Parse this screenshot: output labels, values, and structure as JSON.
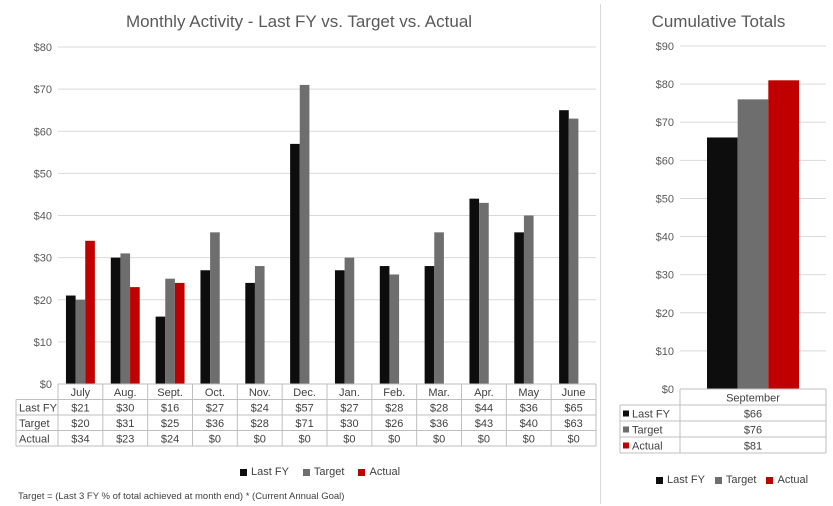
{
  "colors": {
    "last_fy": "#0d0d0d",
    "target": "#6e6e6e",
    "actual": "#c00000",
    "grid": "#d9d9d9",
    "axis": "#bfbfbf"
  },
  "chart_data": [
    {
      "type": "bar",
      "title": "Monthly Activity -  Last FY vs. Target vs. Actual",
      "categories": [
        "July",
        "Aug.",
        "Sept.",
        "Oct.",
        "Nov.",
        "Dec.",
        "Jan.",
        "Feb.",
        "Mar.",
        "Apr.",
        "May",
        "June"
      ],
      "series": [
        {
          "name": "Last FY",
          "values": [
            21,
            30,
            16,
            27,
            24,
            57,
            27,
            28,
            28,
            44,
            36,
            65
          ],
          "labels": [
            "$21",
            "$30",
            "$16",
            "$27",
            "$24",
            "$57",
            "$27",
            "$28",
            "$28",
            "$44",
            "$36",
            "$65"
          ]
        },
        {
          "name": "Target",
          "values": [
            20,
            31,
            25,
            36,
            28,
            71,
            30,
            26,
            36,
            43,
            40,
            63
          ],
          "labels": [
            "$20",
            "$31",
            "$25",
            "$36",
            "$28",
            "$71",
            "$30",
            "$26",
            "$36",
            "$43",
            "$40",
            "$63"
          ]
        },
        {
          "name": "Actual",
          "values": [
            34,
            23,
            24,
            0,
            0,
            0,
            0,
            0,
            0,
            0,
            0,
            0
          ],
          "labels": [
            "$34",
            "$23",
            "$24",
            "$0",
            "$0",
            "$0",
            "$0",
            "$0",
            "$0",
            "$0",
            "$0",
            "$0"
          ]
        }
      ],
      "ylim": [
        0,
        80
      ],
      "yticks": [
        "$0",
        "$10",
        "$20",
        "$30",
        "$40",
        "$50",
        "$60",
        "$70",
        "$80"
      ],
      "grid": true,
      "legend": "bottom",
      "data_table": true
    },
    {
      "type": "bar",
      "title": "Cumulative Totals",
      "categories": [
        "September"
      ],
      "series": [
        {
          "name": "Last FY",
          "values": [
            66
          ],
          "labels": [
            "$66"
          ]
        },
        {
          "name": "Target",
          "values": [
            76
          ],
          "labels": [
            "$76"
          ]
        },
        {
          "name": "Actual",
          "values": [
            81
          ],
          "labels": [
            "$81"
          ]
        }
      ],
      "ylim": [
        0,
        90
      ],
      "yticks": [
        "$0",
        "$10",
        "$20",
        "$30",
        "$40",
        "$50",
        "$60",
        "$70",
        "$80",
        "$90"
      ],
      "grid": true,
      "legend": "bottom",
      "data_table": true
    }
  ],
  "footnote": "Target = (Last 3 FY % of total achieved at month end) * (Current Annual Goal)"
}
